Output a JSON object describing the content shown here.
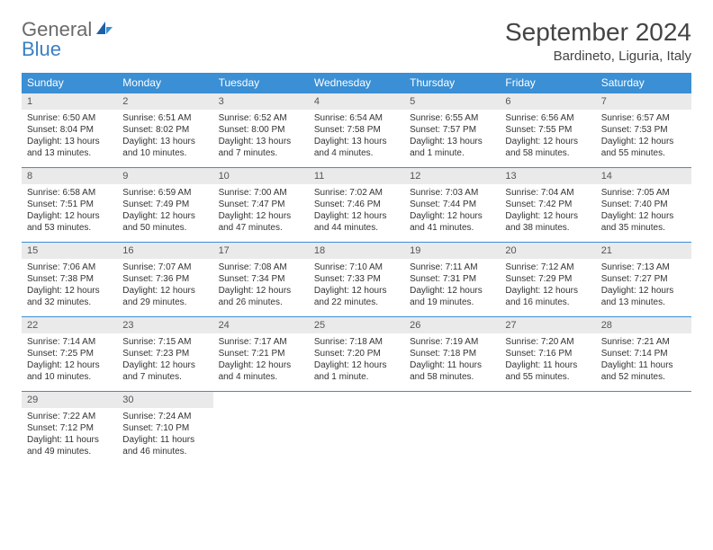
{
  "logo": {
    "text1": "General",
    "text2": "Blue"
  },
  "title": "September 2024",
  "location": "Bardineto, Liguria, Italy",
  "weekdays": [
    "Sunday",
    "Monday",
    "Tuesday",
    "Wednesday",
    "Thursday",
    "Friday",
    "Saturday"
  ],
  "colors": {
    "header_bg": "#3b8fd4",
    "header_text": "#ffffff",
    "daynum_bg": "#eaeaea",
    "border": "#3b8fd4",
    "logo_gray": "#6a6a6a",
    "logo_blue": "#3b7fc4"
  },
  "weeks": [
    [
      {
        "n": "1",
        "sr": "6:50 AM",
        "ss": "8:04 PM",
        "dl": "13 hours and 13 minutes."
      },
      {
        "n": "2",
        "sr": "6:51 AM",
        "ss": "8:02 PM",
        "dl": "13 hours and 10 minutes."
      },
      {
        "n": "3",
        "sr": "6:52 AM",
        "ss": "8:00 PM",
        "dl": "13 hours and 7 minutes."
      },
      {
        "n": "4",
        "sr": "6:54 AM",
        "ss": "7:58 PM",
        "dl": "13 hours and 4 minutes."
      },
      {
        "n": "5",
        "sr": "6:55 AM",
        "ss": "7:57 PM",
        "dl": "13 hours and 1 minute."
      },
      {
        "n": "6",
        "sr": "6:56 AM",
        "ss": "7:55 PM",
        "dl": "12 hours and 58 minutes."
      },
      {
        "n": "7",
        "sr": "6:57 AM",
        "ss": "7:53 PM",
        "dl": "12 hours and 55 minutes."
      }
    ],
    [
      {
        "n": "8",
        "sr": "6:58 AM",
        "ss": "7:51 PM",
        "dl": "12 hours and 53 minutes."
      },
      {
        "n": "9",
        "sr": "6:59 AM",
        "ss": "7:49 PM",
        "dl": "12 hours and 50 minutes."
      },
      {
        "n": "10",
        "sr": "7:00 AM",
        "ss": "7:47 PM",
        "dl": "12 hours and 47 minutes."
      },
      {
        "n": "11",
        "sr": "7:02 AM",
        "ss": "7:46 PM",
        "dl": "12 hours and 44 minutes."
      },
      {
        "n": "12",
        "sr": "7:03 AM",
        "ss": "7:44 PM",
        "dl": "12 hours and 41 minutes."
      },
      {
        "n": "13",
        "sr": "7:04 AM",
        "ss": "7:42 PM",
        "dl": "12 hours and 38 minutes."
      },
      {
        "n": "14",
        "sr": "7:05 AM",
        "ss": "7:40 PM",
        "dl": "12 hours and 35 minutes."
      }
    ],
    [
      {
        "n": "15",
        "sr": "7:06 AM",
        "ss": "7:38 PM",
        "dl": "12 hours and 32 minutes."
      },
      {
        "n": "16",
        "sr": "7:07 AM",
        "ss": "7:36 PM",
        "dl": "12 hours and 29 minutes."
      },
      {
        "n": "17",
        "sr": "7:08 AM",
        "ss": "7:34 PM",
        "dl": "12 hours and 26 minutes."
      },
      {
        "n": "18",
        "sr": "7:10 AM",
        "ss": "7:33 PM",
        "dl": "12 hours and 22 minutes."
      },
      {
        "n": "19",
        "sr": "7:11 AM",
        "ss": "7:31 PM",
        "dl": "12 hours and 19 minutes."
      },
      {
        "n": "20",
        "sr": "7:12 AM",
        "ss": "7:29 PM",
        "dl": "12 hours and 16 minutes."
      },
      {
        "n": "21",
        "sr": "7:13 AM",
        "ss": "7:27 PM",
        "dl": "12 hours and 13 minutes."
      }
    ],
    [
      {
        "n": "22",
        "sr": "7:14 AM",
        "ss": "7:25 PM",
        "dl": "12 hours and 10 minutes."
      },
      {
        "n": "23",
        "sr": "7:15 AM",
        "ss": "7:23 PM",
        "dl": "12 hours and 7 minutes."
      },
      {
        "n": "24",
        "sr": "7:17 AM",
        "ss": "7:21 PM",
        "dl": "12 hours and 4 minutes."
      },
      {
        "n": "25",
        "sr": "7:18 AM",
        "ss": "7:20 PM",
        "dl": "12 hours and 1 minute."
      },
      {
        "n": "26",
        "sr": "7:19 AM",
        "ss": "7:18 PM",
        "dl": "11 hours and 58 minutes."
      },
      {
        "n": "27",
        "sr": "7:20 AM",
        "ss": "7:16 PM",
        "dl": "11 hours and 55 minutes."
      },
      {
        "n": "28",
        "sr": "7:21 AM",
        "ss": "7:14 PM",
        "dl": "11 hours and 52 minutes."
      }
    ],
    [
      {
        "n": "29",
        "sr": "7:22 AM",
        "ss": "7:12 PM",
        "dl": "11 hours and 49 minutes."
      },
      {
        "n": "30",
        "sr": "7:24 AM",
        "ss": "7:10 PM",
        "dl": "11 hours and 46 minutes."
      },
      null,
      null,
      null,
      null,
      null
    ]
  ],
  "labels": {
    "sunrise": "Sunrise:",
    "sunset": "Sunset:",
    "daylight": "Daylight:"
  }
}
